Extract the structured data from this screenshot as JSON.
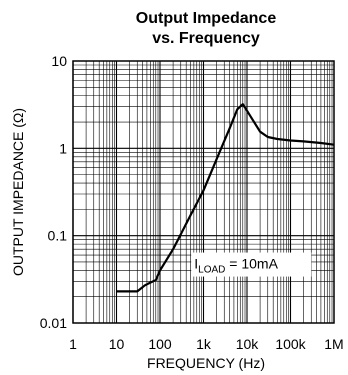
{
  "chart_data": {
    "type": "line",
    "title_line1": "Output Impedance",
    "title_line2": "vs. Frequency",
    "xlabel": "FREQUENCY (Hz)",
    "ylabel": "OUTPUT IMPEDANCE (Ω)",
    "xscale": "log",
    "yscale": "log",
    "xlim": [
      1,
      1000000
    ],
    "ylim": [
      0.01,
      10
    ],
    "grid": true,
    "x_ticks": [
      {
        "value": 1,
        "label": "1"
      },
      {
        "value": 10,
        "label": "10"
      },
      {
        "value": 100,
        "label": "100"
      },
      {
        "value": 1000,
        "label": "1k"
      },
      {
        "value": 10000,
        "label": "10k"
      },
      {
        "value": 100000,
        "label": "100k"
      },
      {
        "value": 1000000,
        "label": "1M"
      }
    ],
    "y_ticks": [
      {
        "value": 0.01,
        "label": "0.01"
      },
      {
        "value": 0.1,
        "label": "0.1"
      },
      {
        "value": 1,
        "label": "1"
      },
      {
        "value": 10,
        "label": "10"
      }
    ],
    "annotation": {
      "main": "I",
      "sub": "LOAD",
      "rest": " = 10mA"
    },
    "series": [
      {
        "x": [
          10,
          20,
          30,
          45,
          60,
          80,
          100,
          200,
          500,
          1000,
          2000,
          4000,
          6000,
          8000,
          10000,
          20000,
          30000,
          50000,
          100000,
          200000,
          500000,
          1000000
        ],
        "y": [
          0.023,
          0.023,
          0.023,
          0.027,
          0.029,
          0.031,
          0.04,
          0.07,
          0.17,
          0.33,
          0.75,
          1.7,
          2.8,
          3.2,
          2.7,
          1.55,
          1.35,
          1.28,
          1.23,
          1.2,
          1.15,
          1.1
        ]
      }
    ]
  }
}
